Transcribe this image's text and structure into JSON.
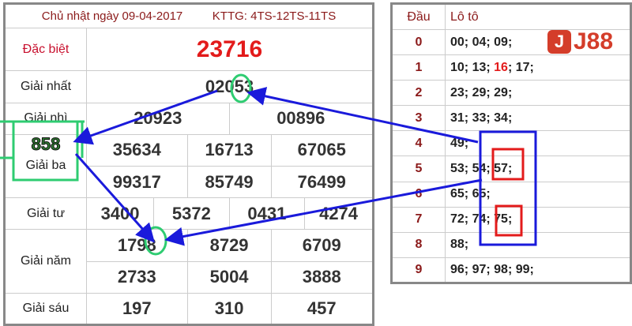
{
  "header": {
    "date": "Chủ nhật ngày 09-04-2017",
    "kttg": "KTTG: 4TS-12TS-11TS"
  },
  "prizes": {
    "special": {
      "label": "Đặc biệt",
      "values": [
        "23716"
      ]
    },
    "first": {
      "label": "Giải nhất",
      "values": [
        "02053"
      ]
    },
    "second": {
      "label": "Giải nhì",
      "values": [
        "20923",
        "00896"
      ]
    },
    "third": {
      "label": "Giải ba",
      "values": [
        "35634",
        "16713",
        "67065",
        "99317",
        "85749",
        "76499"
      ]
    },
    "fourth": {
      "label": "Giải tư",
      "values": [
        "3400",
        "5372",
        "0431",
        "4274"
      ]
    },
    "fifth": {
      "label": "Giải năm",
      "values": [
        "1798",
        "8729",
        "6709",
        "2733",
        "5004",
        "3888"
      ]
    },
    "sixth": {
      "label": "Giải sáu",
      "values": [
        "197",
        "310",
        "457"
      ]
    }
  },
  "loto": {
    "headers": [
      "Đầu",
      "Lô tô"
    ],
    "rows": [
      {
        "dau": "0",
        "a": "00; 04; 09;"
      },
      {
        "dau": "1",
        "a": "10; 13; ",
        "hl": "16",
        "b": "; 17;"
      },
      {
        "dau": "2",
        "a": "23; 29; 29;"
      },
      {
        "dau": "3",
        "a": "31; 33; 34;"
      },
      {
        "dau": "4",
        "a": "49;"
      },
      {
        "dau": "5",
        "a": "53; 54; 57;"
      },
      {
        "dau": "6",
        "a": "65; 65;"
      },
      {
        "dau": "7",
        "a": "72; 74; 75;"
      },
      {
        "dau": "8",
        "a": "88;"
      },
      {
        "dau": "9",
        "a": "96; 97; 98; 99;"
      }
    ]
  },
  "annotation": {
    "sum": "858",
    "colors": {
      "arrow": "#1a1adb",
      "circle": "#2ecc71",
      "highlight": "#e31b1b"
    }
  },
  "logo": {
    "text": "J88",
    "mark": "J",
    "color": "#d43d2a"
  }
}
